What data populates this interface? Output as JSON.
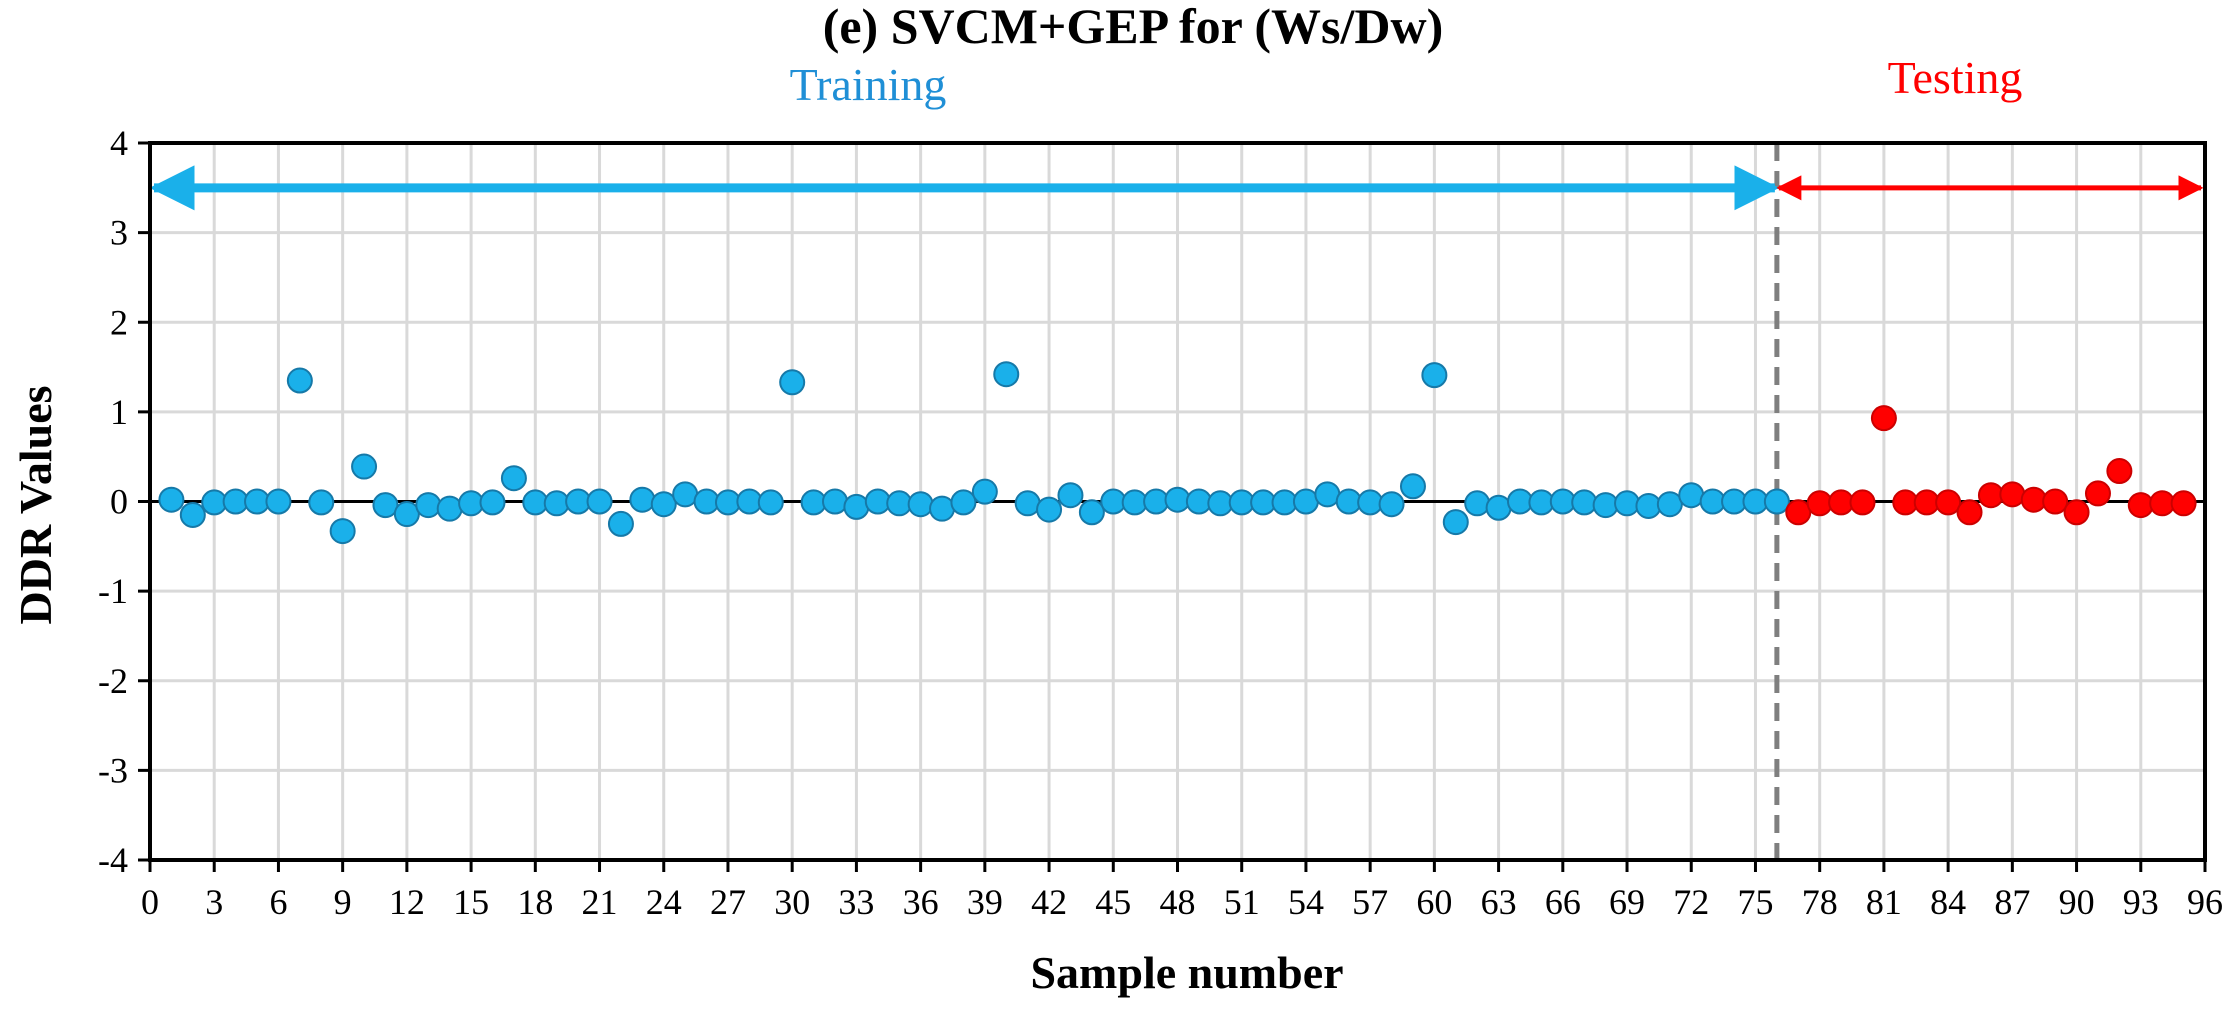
{
  "chart_data": {
    "type": "scatter",
    "title": "(e) SVCM+GEP for (Ws/Dw)",
    "xlabel": "Sample number",
    "ylabel": "DDR Values",
    "xlim": [
      0,
      96
    ],
    "ylim": [
      -4,
      4
    ],
    "x_ticks": [
      0,
      3,
      6,
      9,
      12,
      15,
      18,
      21,
      24,
      27,
      30,
      33,
      36,
      39,
      42,
      45,
      48,
      51,
      54,
      57,
      60,
      63,
      66,
      69,
      72,
      75,
      78,
      81,
      84,
      87,
      90,
      93,
      96
    ],
    "y_ticks": [
      -4,
      -3,
      -2,
      -1,
      0,
      1,
      2,
      3,
      4
    ],
    "grid": true,
    "split_x": 76,
    "region_labels": {
      "training": "Training",
      "testing": "Testing"
    },
    "region_arrow_y": 3.5,
    "colors": {
      "training": "#1ab0ea",
      "training_edge": "#1679a8",
      "testing": "#ff0000",
      "testing_edge": "#cc0000",
      "training_label": "#1f8fd6",
      "testing_label": "#ff0000",
      "grid": "#d9d9d9",
      "split_line": "#7f7f7f"
    },
    "series": [
      {
        "key": "training",
        "x": [
          1,
          2,
          3,
          4,
          5,
          6,
          7,
          8,
          9,
          10,
          11,
          12,
          13,
          14,
          15,
          16,
          17,
          18,
          19,
          20,
          21,
          22,
          23,
          24,
          25,
          26,
          27,
          28,
          29,
          30,
          31,
          32,
          33,
          34,
          35,
          36,
          37,
          38,
          39,
          40,
          41,
          42,
          43,
          44,
          45,
          46,
          47,
          48,
          49,
          50,
          51,
          52,
          53,
          54,
          55,
          56,
          57,
          58,
          59,
          60,
          61,
          62,
          63,
          64,
          65,
          66,
          67,
          68,
          69,
          70,
          71,
          72,
          73,
          74,
          75,
          76
        ],
        "values": [
          0.02,
          -0.15,
          -0.01,
          0.0,
          0.0,
          0.0,
          1.35,
          -0.01,
          -0.33,
          0.39,
          -0.04,
          -0.14,
          -0.04,
          -0.08,
          -0.02,
          -0.01,
          0.26,
          -0.01,
          -0.02,
          0.0,
          0.0,
          -0.25,
          0.02,
          -0.03,
          0.08,
          0.0,
          -0.01,
          0.0,
          -0.01,
          1.33,
          -0.01,
          0.0,
          -0.06,
          0.0,
          -0.02,
          -0.03,
          -0.08,
          -0.01,
          0.11,
          1.42,
          -0.02,
          -0.09,
          0.07,
          -0.12,
          0.0,
          -0.01,
          0.0,
          0.02,
          0.0,
          -0.02,
          -0.01,
          -0.01,
          -0.01,
          0.0,
          0.08,
          0.0,
          -0.01,
          -0.03,
          0.17,
          1.41,
          -0.23,
          -0.02,
          -0.07,
          0.0,
          -0.01,
          0.0,
          -0.01,
          -0.04,
          -0.02,
          -0.05,
          -0.03,
          0.07,
          0.0,
          0.0,
          0.0,
          0.0
        ]
      },
      {
        "key": "testing",
        "x": [
          77,
          78,
          79,
          80,
          81,
          82,
          83,
          84,
          85,
          86,
          87,
          88,
          89,
          90,
          91,
          92,
          93,
          94,
          95
        ],
        "values": [
          -0.12,
          -0.02,
          -0.01,
          -0.01,
          0.93,
          -0.01,
          -0.01,
          -0.01,
          -0.12,
          0.07,
          0.08,
          0.02,
          0.0,
          -0.12,
          0.09,
          0.34,
          -0.04,
          -0.02,
          -0.02
        ]
      }
    ]
  }
}
